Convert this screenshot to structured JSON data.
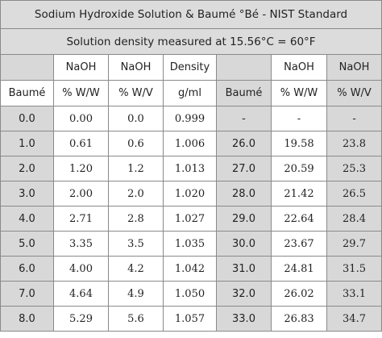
{
  "title": "Sodium Hydroxide Solution & Baumé °Bé - NIST Standard",
  "subtitle": "Solution density measured at 15.56°C = 60°F",
  "header_row1": [
    "",
    "NaOH",
    "NaOH",
    "Density",
    "",
    "NaOH",
    "NaOH"
  ],
  "header_row2": [
    "Baumé",
    "% W/W",
    "% W/V",
    "g/ml",
    "Baumé",
    "% W/W",
    "% W/V"
  ],
  "rows": [
    [
      "0.0",
      "0.00",
      "0.0",
      "0.999",
      "-",
      "-",
      "-"
    ],
    [
      "1.0",
      "0.61",
      "0.6",
      "1.006",
      "26.0",
      "19.58",
      "23.8"
    ],
    [
      "2.0",
      "1.20",
      "1.2",
      "1.013",
      "27.0",
      "20.59",
      "25.3"
    ],
    [
      "3.0",
      "2.00",
      "2.0",
      "1.020",
      "28.0",
      "21.42",
      "26.5"
    ],
    [
      "4.0",
      "2.71",
      "2.8",
      "1.027",
      "29.0",
      "22.64",
      "28.4"
    ],
    [
      "5.0",
      "3.35",
      "3.5",
      "1.035",
      "30.0",
      "23.67",
      "29.7"
    ],
    [
      "6.0",
      "4.00",
      "4.2",
      "1.042",
      "31.0",
      "24.81",
      "31.5"
    ],
    [
      "7.0",
      "4.64",
      "4.9",
      "1.050",
      "32.0",
      "26.02",
      "33.1"
    ],
    [
      "8.0",
      "5.29",
      "5.6",
      "1.057",
      "33.0",
      "26.83",
      "34.7"
    ]
  ]
}
